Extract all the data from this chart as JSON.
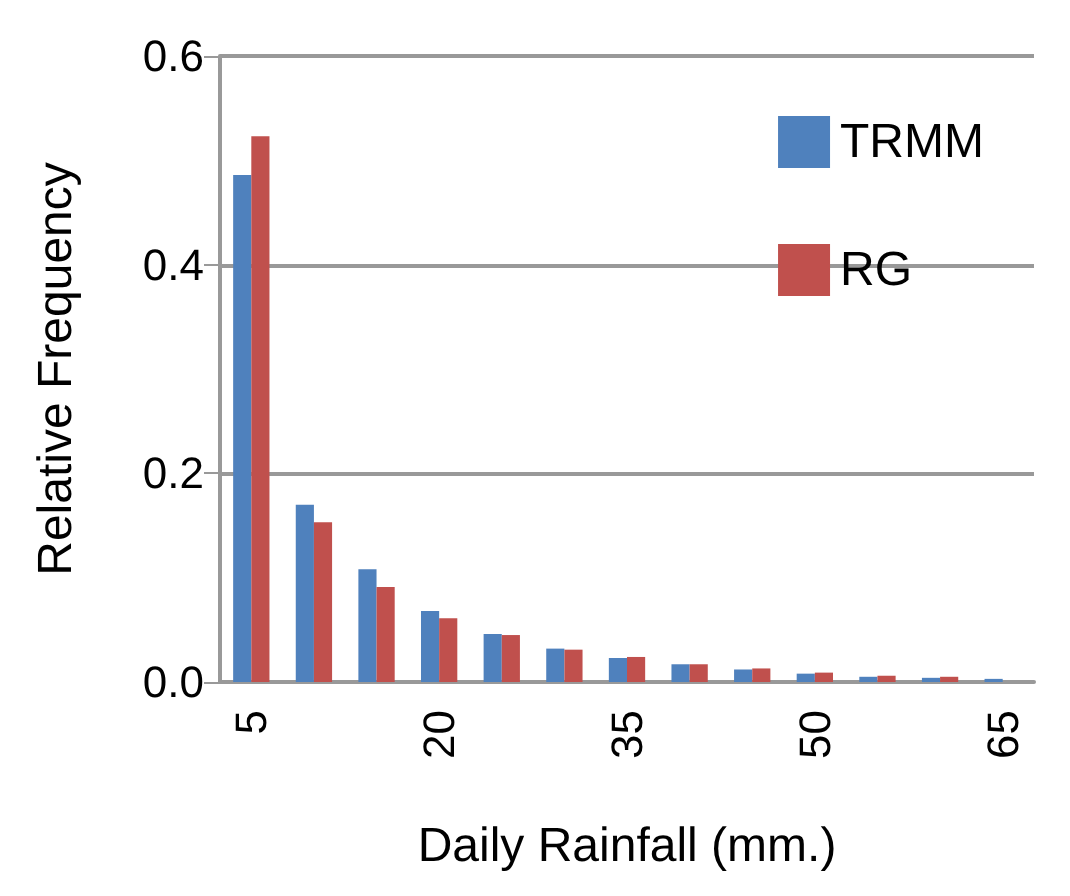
{
  "chart_data": {
    "type": "bar",
    "xlabel": "Daily Rainfall (mm.)",
    "ylabel": "Relative Frequency",
    "categories": [
      "5",
      null,
      null,
      "20",
      null,
      null,
      "35",
      null,
      null,
      "50",
      null,
      null,
      "65"
    ],
    "series": [
      {
        "name": "TRMM",
        "color": "#4f81bd",
        "values": [
          0.486,
          0.17,
          0.108,
          0.068,
          0.046,
          0.032,
          0.023,
          0.017,
          0.012,
          0.008,
          0.005,
          0.004,
          0.003
        ]
      },
      {
        "name": "RG",
        "color": "#c0504d",
        "values": [
          0.523,
          0.153,
          0.091,
          0.061,
          0.045,
          0.031,
          0.024,
          0.017,
          0.013,
          0.009,
          0.006,
          0.005,
          null
        ]
      }
    ],
    "ylim": [
      0,
      0.6
    ],
    "yticks": [
      "0.0",
      0.2,
      0.4,
      0.6
    ],
    "grid": "y",
    "legend": "top right"
  }
}
